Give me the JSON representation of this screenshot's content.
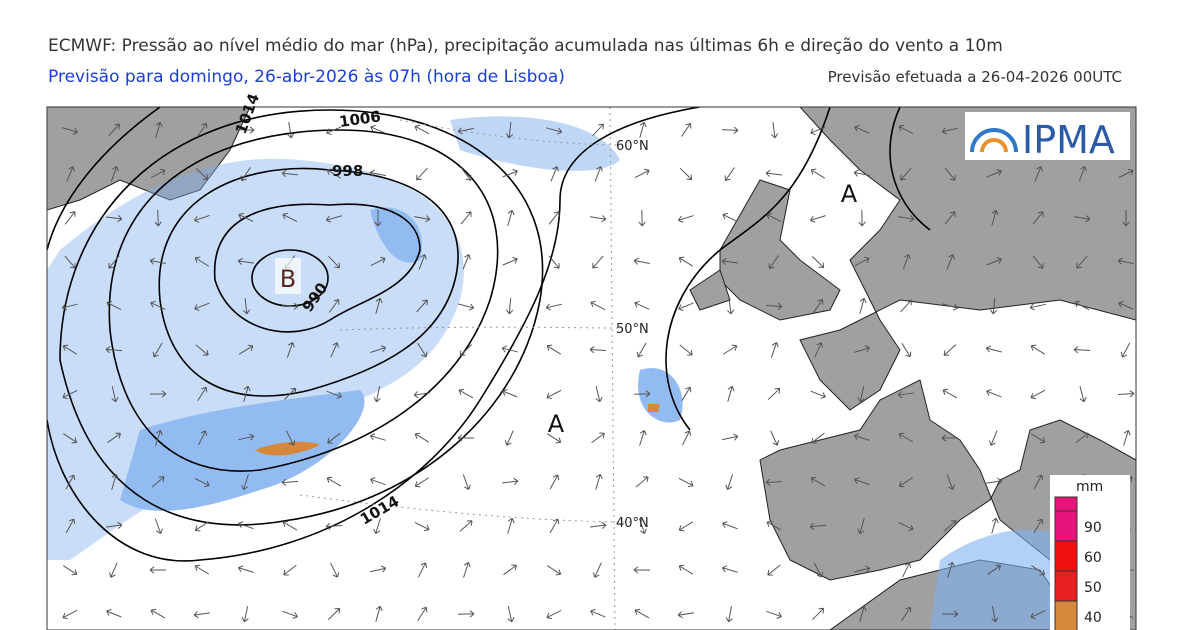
{
  "header": {
    "title": "ECMWF: Pressão ao nível médio do mar (hPa), precipitação acumulada nas últimas 6h e direção do vento a 10m",
    "subtitle": "Previsão para domingo, 26-abr-2026 às 07h (hora de Lisboa)",
    "issued": "Previsão efetuada a 26-04-2026 00UTC"
  },
  "map": {
    "logo": "IPMA",
    "pressure_centers": [
      {
        "label": "B"
      },
      {
        "label": "A"
      },
      {
        "label": "A"
      }
    ],
    "isobar_labels": [
      "1006",
      "998",
      "990",
      "1014",
      "1014"
    ],
    "latitude_labels": [
      "60°N",
      "50°N",
      "40°N"
    ]
  },
  "legend": {
    "unit": "mm",
    "levels": [
      {
        "label": "90",
        "color": "#e8147c"
      },
      {
        "label": "60",
        "color": "#f01010"
      },
      {
        "label": "50",
        "color": "#e82020"
      },
      {
        "label": "40",
        "color": "#d6873c"
      }
    ]
  }
}
